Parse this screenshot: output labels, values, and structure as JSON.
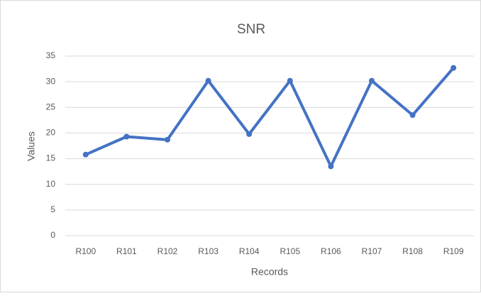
{
  "chart_data": {
    "type": "line",
    "title": "SNR",
    "x_label": "Records",
    "y_label": "Values",
    "categories": [
      "R100",
      "R101",
      "R102",
      "R103",
      "R104",
      "R105",
      "R106",
      "R107",
      "R108",
      "R109"
    ],
    "series": [
      {
        "name": "SNR",
        "color": "#4472c4",
        "values": [
          15.8,
          19.3,
          18.7,
          30.2,
          19.8,
          30.2,
          13.5,
          30.2,
          23.5,
          32.7
        ]
      }
    ],
    "ylim": [
      0,
      35
    ],
    "yticks": [
      0,
      5,
      10,
      15,
      20,
      25,
      30,
      35
    ],
    "grid": true
  }
}
